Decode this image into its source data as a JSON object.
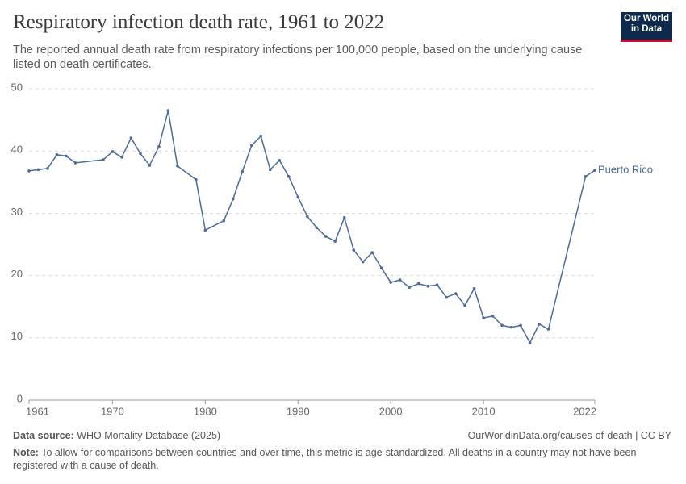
{
  "logo": [
    "Our World",
    "in Data"
  ],
  "chart_data": {
    "type": "line",
    "title": "Respiratory infection death rate, 1961 to 2022",
    "subtitle": "The reported annual death rate from respiratory infections per 100,000 people, based on the underlying cause listed on death certificates.",
    "x": [
      1961,
      1962,
      1963,
      1964,
      1965,
      1966,
      1969,
      1970,
      1971,
      1972,
      1973,
      1974,
      1975,
      1976,
      1977,
      1979,
      1980,
      1982,
      1983,
      1984,
      1985,
      1986,
      1987,
      1988,
      1989,
      1990,
      1991,
      1992,
      1993,
      1994,
      1995,
      1996,
      1997,
      1998,
      1999,
      2000,
      2001,
      2002,
      2003,
      2004,
      2005,
      2006,
      2007,
      2008,
      2009,
      2010,
      2011,
      2012,
      2013,
      2014,
      2015,
      2016,
      2017,
      2021,
      2022
    ],
    "series": [
      {
        "name": "Puerto Rico",
        "color": "#4c6a9c",
        "values": [
          36.8,
          37.0,
          37.2,
          39.4,
          39.2,
          38.1,
          38.6,
          39.9,
          39.0,
          42.1,
          39.6,
          37.7,
          40.7,
          46.5,
          37.6,
          35.4,
          27.3,
          28.8,
          32.3,
          36.7,
          40.9,
          42.4,
          37.0,
          38.5,
          35.9,
          32.6,
          29.5,
          27.7,
          26.3,
          25.5,
          29.3,
          24.1,
          22.2,
          23.7,
          21.2,
          18.9,
          19.3,
          18.1,
          18.7,
          18.3,
          18.5,
          16.5,
          17.1,
          15.2,
          17.9,
          13.2,
          13.5,
          12.0,
          11.7,
          12.0,
          9.2,
          12.2,
          11.4,
          35.9,
          36.9
        ]
      }
    ],
    "xlim": [
      1961,
      2022
    ],
    "xticks": [
      1961,
      1970,
      1980,
      1990,
      2000,
      2010,
      2022
    ],
    "ylim": [
      0,
      50
    ],
    "yticks": [
      0,
      10,
      20,
      30,
      40,
      50
    ],
    "grid": true,
    "source_label": "Data source:",
    "source": "WHO Mortality Database (2025)",
    "url": "OurWorldinData.org/causes-of-death | CC BY",
    "note_label": "Note:",
    "note": "To allow for comparisons between countries and over time, this metric is age-standardized. All deaths in a country may not have been registered with a cause of death."
  }
}
